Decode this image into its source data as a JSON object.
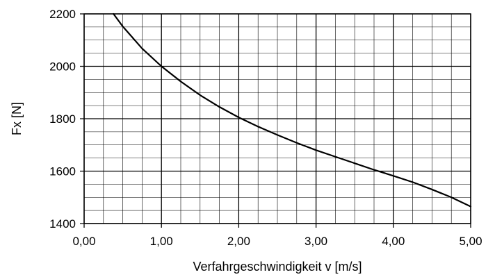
{
  "chart_data": {
    "type": "line",
    "title": "",
    "xlabel": "Verfahrgeschwindigkeit v [m/s]",
    "ylabel": "Fx [N]",
    "xlim": [
      0,
      5
    ],
    "ylim": [
      1400,
      2200
    ],
    "x_ticks": [
      0,
      1,
      2,
      3,
      4,
      5
    ],
    "x_tick_labels": [
      "0,00",
      "1,00",
      "2,00",
      "3,00",
      "4,00",
      "5,00"
    ],
    "y_ticks": [
      1400,
      1600,
      1800,
      2000,
      2200
    ],
    "y_tick_labels": [
      "1400",
      "1600",
      "1800",
      "2000",
      "2200"
    ],
    "x_minor_step": 0.25,
    "y_minor_step": 50,
    "grid": true,
    "legend": "none",
    "colors": {
      "line": "#000000",
      "grid": "#000000"
    },
    "series": [
      {
        "x": [
          0.38,
          0.5,
          0.75,
          1.0,
          1.25,
          1.5,
          1.75,
          2.0,
          2.25,
          2.5,
          2.75,
          3.0,
          3.25,
          3.5,
          3.75,
          4.0,
          4.25,
          4.5,
          4.75,
          5.0
        ],
        "y": [
          2200,
          2152,
          2068,
          2000,
          1942,
          1890,
          1845,
          1805,
          1770,
          1738,
          1708,
          1680,
          1655,
          1630,
          1605,
          1582,
          1558,
          1530,
          1500,
          1465
        ]
      }
    ]
  }
}
